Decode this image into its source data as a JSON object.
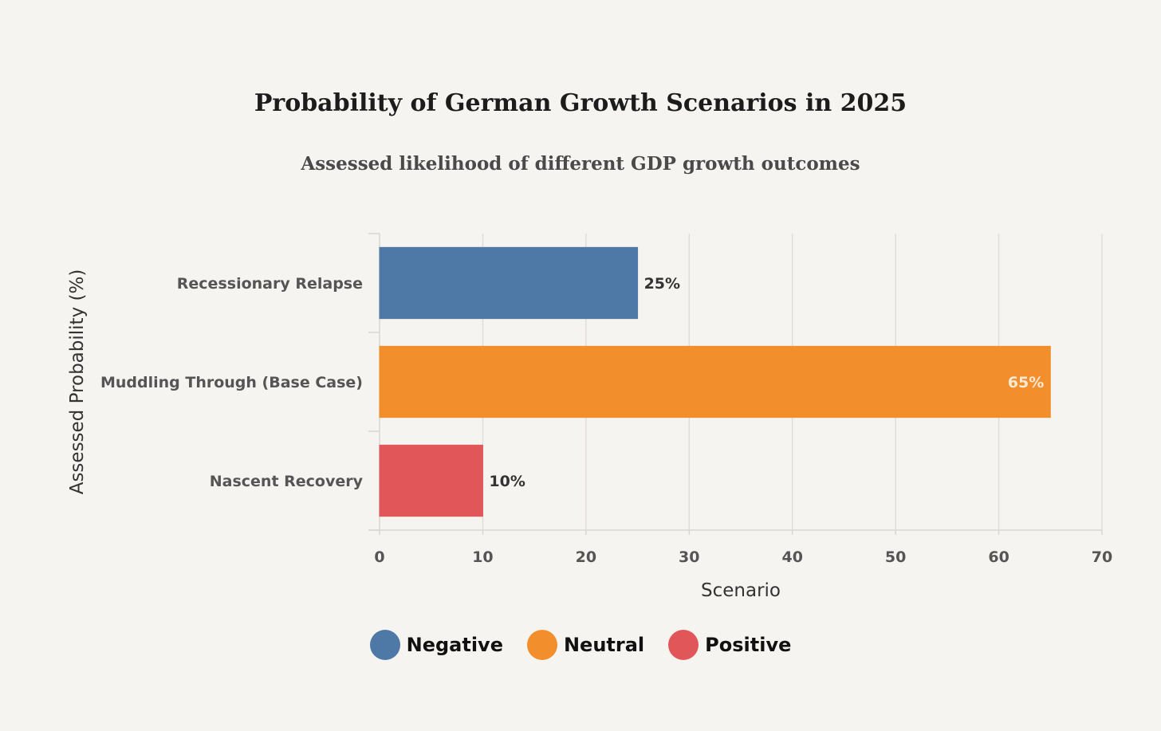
{
  "title": "Probability of German Growth Scenarios in 2025",
  "subtitle": "Assessed likelihood of different GDP growth outcomes",
  "chart_data": {
    "type": "bar",
    "orientation": "horizontal",
    "title": "Probability of German Growth Scenarios in 2025",
    "subtitle": "Assessed likelihood of different GDP growth outcomes",
    "xlabel": "Scenario",
    "ylabel": "Assessed Probability (%)",
    "xlim": [
      0,
      70
    ],
    "xticks": [
      0,
      10,
      20,
      30,
      40,
      50,
      60,
      70
    ],
    "grid": true,
    "categories": [
      "Recessionary Relapse",
      "Muddling Through (Base Case)",
      "Nascent Recovery"
    ],
    "values": [
      25,
      65,
      10
    ],
    "value_labels": [
      "25%",
      "65%",
      "10%"
    ],
    "bar_groups": [
      "Negative",
      "Neutral",
      "Positive"
    ],
    "legend": {
      "placement": "bottom-center",
      "entries": [
        {
          "name": "Negative",
          "color": "#4e79a7"
        },
        {
          "name": "Neutral",
          "color": "#f28e2b"
        },
        {
          "name": "Positive",
          "color": "#e15759"
        }
      ]
    }
  }
}
